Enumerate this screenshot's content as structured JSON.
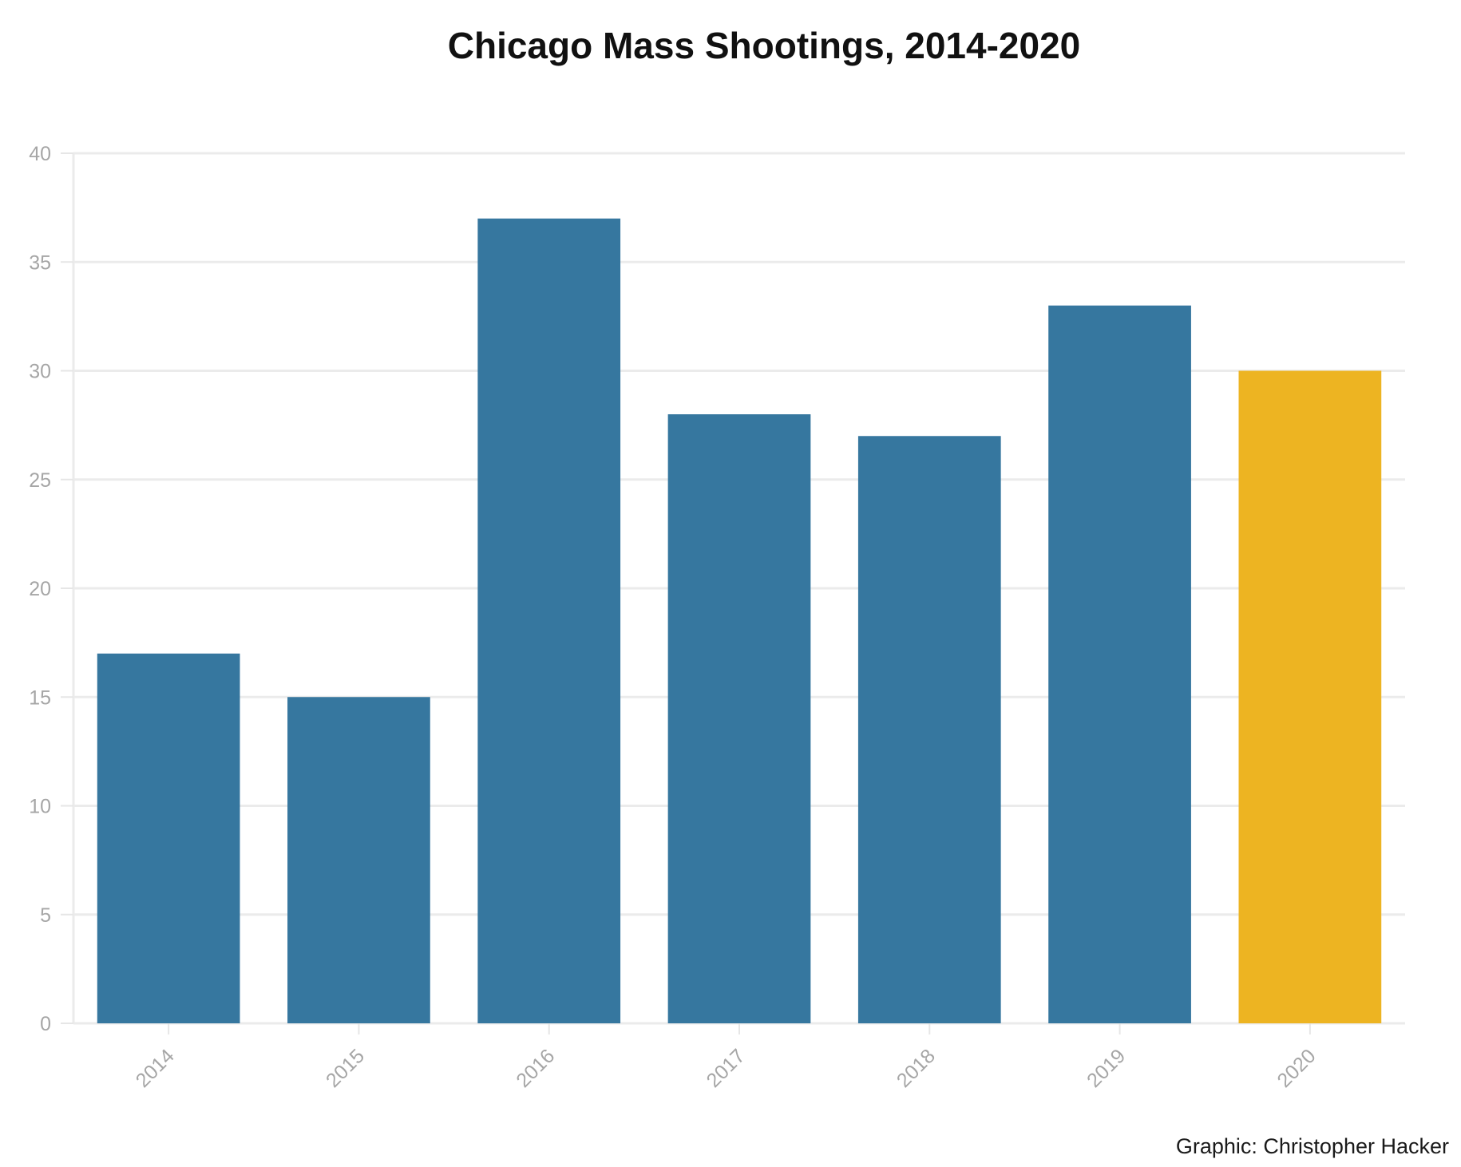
{
  "chart_data": {
    "type": "bar",
    "title": "Chicago Mass Shootings, 2014-2020",
    "credit": "Graphic: Christopher Hacker",
    "xlabel": "",
    "ylabel": "",
    "categories": [
      "2014",
      "2015",
      "2016",
      "2017",
      "2018",
      "2019",
      "2020"
    ],
    "values": [
      17,
      15,
      37,
      28,
      27,
      33,
      30
    ],
    "colors": [
      "#36779f",
      "#36779f",
      "#36779f",
      "#36779f",
      "#36779f",
      "#36779f",
      "#edb422"
    ],
    "ylim": [
      0,
      40
    ],
    "yticks": [
      0,
      5,
      10,
      15,
      20,
      25,
      30,
      35,
      40
    ],
    "grid": true,
    "legend": "none"
  }
}
